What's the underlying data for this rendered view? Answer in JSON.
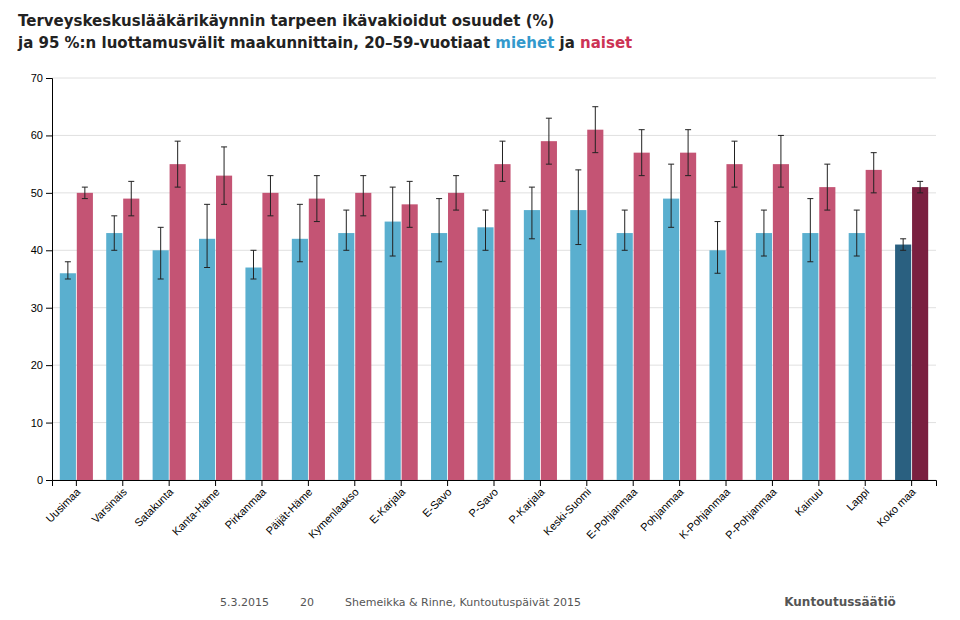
{
  "chart_data": {
    "type": "bar",
    "title": "Terveyskeskuslääkärikäynnin tarpeen ikävakioidut osuudet (%)",
    "subtitle": "ja 95 %:n luottamusvälit maakunnittain, 20–59-vuotiaat miehet ja naiset",
    "categories": [
      "Uusimaa",
      "Varsinais",
      "Satakunta",
      "Kanta-Häme",
      "Pirkanmaa",
      "Päijät-Häme",
      "Kymenlaakso",
      "E-Karjala",
      "E-Savo",
      "P-Savo",
      "P-Karjala",
      "Keski-Suomi",
      "E-Pohjanmaa",
      "Pohjanmaa",
      "K-Pohjanmaa",
      "P-Pohjanmaa",
      "Kainuu",
      "Lappi",
      "Koko maa"
    ],
    "series": [
      {
        "name": "miehet",
        "color": "#3399cc",
        "colors": [
          "#5aafcf",
          "#5aafcf",
          "#5aafcf",
          "#5aafcf",
          "#5aafcf",
          "#5aafcf",
          "#5aafcf",
          "#5aafcf",
          "#5aafcf",
          "#5aafcf",
          "#5aafcf",
          "#5aafcf",
          "#5aafcf",
          "#5aafcf",
          "#5aafcf",
          "#5aafcf",
          "#5aafcf",
          "#5aafcf",
          "#2a6080"
        ],
        "values": [
          36,
          43,
          40,
          42,
          37,
          42,
          43,
          45,
          43,
          44,
          47,
          47,
          43,
          49,
          40,
          43,
          43,
          43,
          41
        ],
        "ci_low": [
          35,
          40,
          35,
          37,
          35,
          38,
          40,
          39,
          38,
          40,
          42,
          41,
          40,
          44,
          36,
          39,
          38,
          39,
          40
        ],
        "ci_high": [
          38,
          46,
          44,
          48,
          40,
          48,
          47,
          51,
          49,
          47,
          51,
          54,
          47,
          55,
          45,
          47,
          49,
          47,
          42
        ]
      },
      {
        "name": "naiset",
        "color": "#cc3355",
        "colors": [
          "#c45474",
          "#c45474",
          "#c45474",
          "#c45474",
          "#c45474",
          "#c45474",
          "#c45474",
          "#c45474",
          "#c45474",
          "#c45474",
          "#c45474",
          "#c45474",
          "#c45474",
          "#c45474",
          "#c45474",
          "#c45474",
          "#c45474",
          "#c45474",
          "#7a2040"
        ],
        "values": [
          50,
          49,
          55,
          53,
          50,
          49,
          50,
          48,
          50,
          55,
          59,
          61,
          57,
          57,
          55,
          55,
          51,
          54,
          51
        ],
        "ci_low": [
          49,
          46,
          51,
          48,
          46,
          45,
          46,
          44,
          47,
          52,
          55,
          57,
          53,
          53,
          51,
          51,
          47,
          50,
          50
        ],
        "ci_high": [
          51,
          52,
          59,
          58,
          53,
          53,
          53,
          52,
          53,
          59,
          63,
          65,
          61,
          61,
          59,
          60,
          55,
          57,
          52
        ]
      }
    ],
    "ylim": [
      0,
      70
    ],
    "yticks": [
      0,
      10,
      20,
      30,
      40,
      50,
      60,
      70
    ],
    "grid": true,
    "annotations": [
      "5.3.2015",
      "20",
      "Shemeikka & Rinne, Kuntoutuspäivät 2015",
      "Kuntoutussäätiö"
    ]
  }
}
